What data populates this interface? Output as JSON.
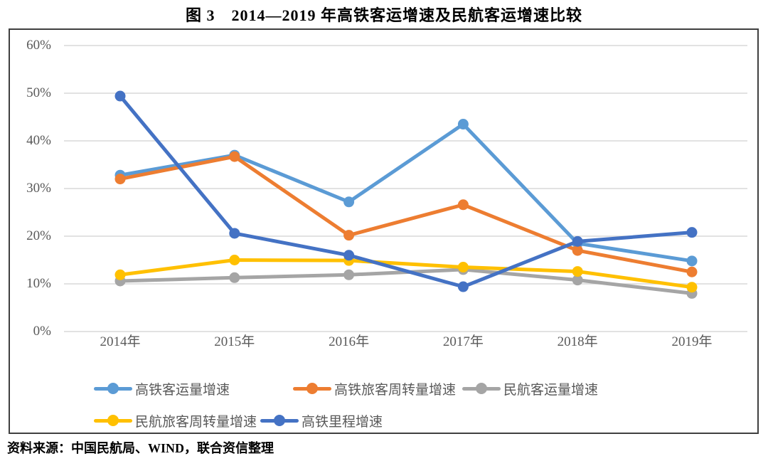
{
  "title": "图 3　2014—2019 年高铁客运增速及民航客运增速比较",
  "source": "资料来源：中国民航局、WIND，联合资信整理",
  "colors": {
    "border": "#3f3f3f",
    "gridline": "#d9d9d9",
    "axis_text": "#595959"
  },
  "chart_data": {
    "type": "line",
    "title": "图 3　2014—2019 年高铁客运增速及民航客运增速比较",
    "categories": [
      "2014年",
      "2015年",
      "2016年",
      "2017年",
      "2018年",
      "2019年"
    ],
    "y_tick_labels": [
      "60%",
      "50%",
      "40%",
      "30%",
      "20%",
      "10%",
      "0%"
    ],
    "ylim": [
      0,
      60
    ],
    "y_unit": "%",
    "grid": true,
    "legend_position": "bottom",
    "marker": "circle",
    "series": [
      {
        "name": "高铁客运量增速",
        "color": "#5B9BD5",
        "values": [
          32.8,
          37.0,
          27.2,
          43.5,
          18.5,
          14.8
        ]
      },
      {
        "name": "高铁旅客周转量增速",
        "color": "#ED7D31",
        "values": [
          32.0,
          36.7,
          20.2,
          26.6,
          17.0,
          12.5
        ]
      },
      {
        "name": "民航客运量增速",
        "color": "#A5A5A5",
        "values": [
          10.6,
          11.3,
          11.9,
          13.0,
          10.8,
          8.0
        ]
      },
      {
        "name": "民航旅客周转量增速",
        "color": "#FFC000",
        "values": [
          11.9,
          15.0,
          14.9,
          13.5,
          12.6,
          9.3
        ]
      },
      {
        "name": "高铁里程增速",
        "color": "#4472C4",
        "values": [
          49.4,
          20.6,
          16.0,
          9.4,
          18.9,
          20.8
        ]
      }
    ],
    "z_order": [
      2,
      3,
      0,
      1,
      4
    ]
  }
}
